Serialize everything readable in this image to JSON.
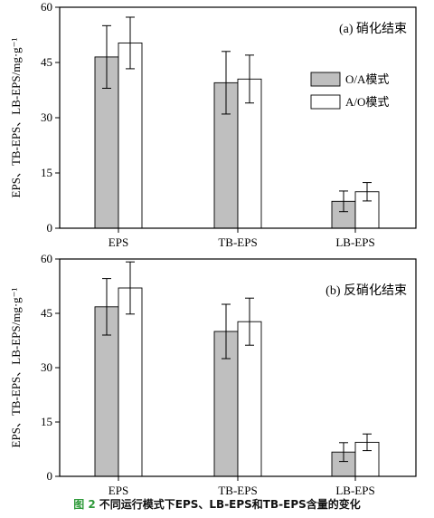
{
  "chart_data": [
    {
      "type": "bar",
      "title": "(a) 硝化结束",
      "categories": [
        "EPS",
        "TB-EPS",
        "LB-EPS"
      ],
      "ylabel": "EPS、TB-EPS、LB-EPS/mg·g⁻¹",
      "ylim": [
        0,
        60
      ],
      "yticks": [
        0,
        15,
        30,
        45,
        60
      ],
      "grid": false,
      "legend_position": "top-right",
      "series": [
        {
          "name": "O/A模式",
          "color": "#bfbfbf",
          "values": [
            46.5,
            39.5,
            7.3
          ],
          "errors": [
            8.5,
            8.5,
            2.8
          ]
        },
        {
          "name": "A/O模式",
          "color": "#ffffff",
          "values": [
            50.3,
            40.5,
            9.9
          ],
          "errors": [
            7.0,
            6.5,
            2.5
          ]
        }
      ]
    },
    {
      "type": "bar",
      "title": "(b) 反硝化结束",
      "categories": [
        "EPS",
        "TB-EPS",
        "LB-EPS"
      ],
      "ylabel": "EPS、TB-EPS、LB-EPS/mg·g⁻¹",
      "ylim": [
        0,
        60
      ],
      "yticks": [
        0,
        15,
        30,
        45,
        60
      ],
      "grid": false,
      "series": [
        {
          "name": "O/A模式",
          "color": "#bfbfbf",
          "values": [
            46.8,
            40.0,
            6.7
          ],
          "errors": [
            7.8,
            7.5,
            2.6
          ]
        },
        {
          "name": "A/O模式",
          "color": "#ffffff",
          "values": [
            52.0,
            42.7,
            9.4
          ],
          "errors": [
            7.2,
            6.5,
            2.3
          ]
        }
      ]
    }
  ],
  "caption": {
    "label": "图 2",
    "text": "不同运行模式下EPS、LB-EPS和TB-EPS含量的变化"
  }
}
